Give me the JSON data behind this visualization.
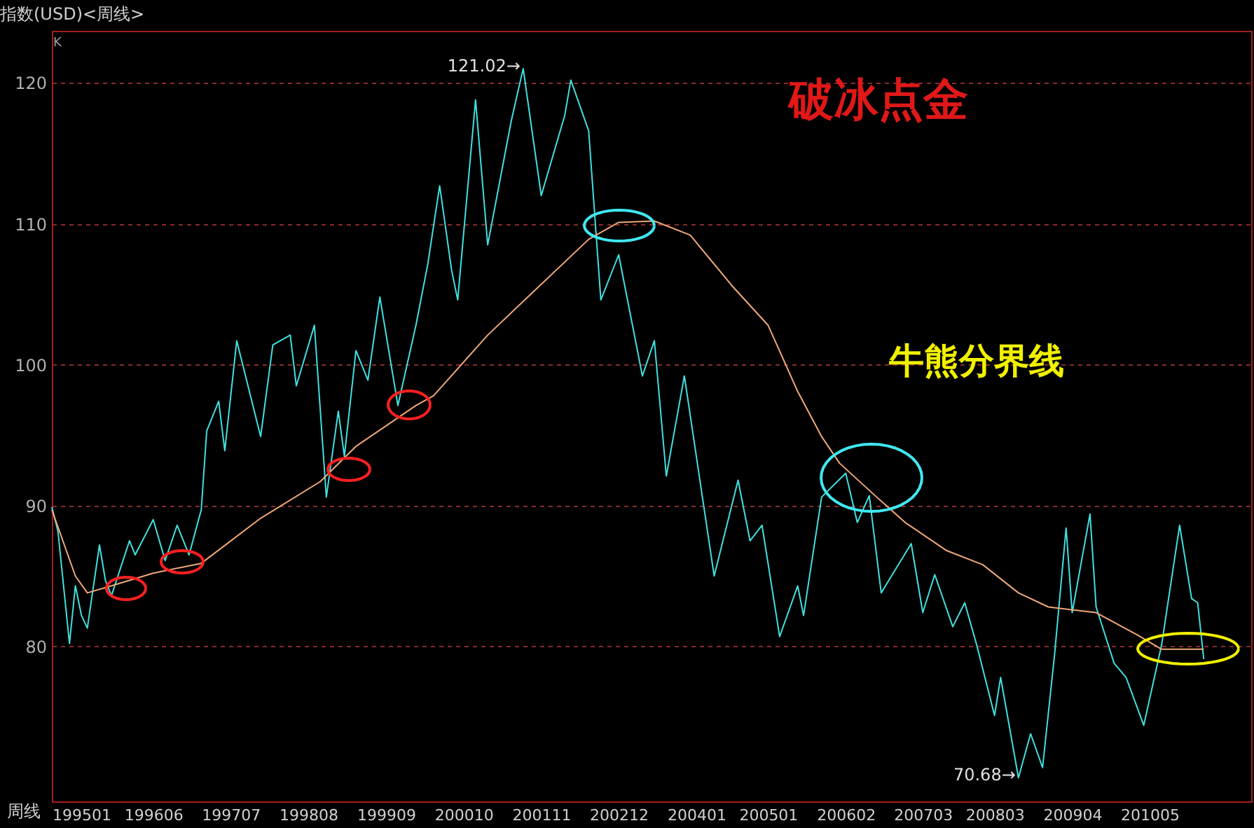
{
  "chart_data": {
    "type": "line",
    "title": "指数(USD)<周线>",
    "annotations": [
      "破冰点金",
      "牛熊分界线",
      "K",
      "周线",
      {
        "text": "121.02→",
        "x": "2001-08",
        "y": 121.02
      },
      {
        "text": "70.68→",
        "x": "2008-07",
        "y": 70.68
      }
    ],
    "series": [
      {
        "color": "#40e0e0",
        "x": [
          "1995-01",
          "1995-02",
          "1995-04",
          "1995-05",
          "1995-06",
          "1995-07",
          "1995-09",
          "1995-10",
          "1995-11",
          "1996-02",
          "1996-03",
          "1996-06",
          "1996-08",
          "1996-10",
          "1996-12",
          "1997-02",
          "1997-03",
          "1997-05",
          "1997-06",
          "1997-08",
          "1997-12",
          "1998-02",
          "1998-05",
          "1998-06",
          "1998-09",
          "1998-11",
          "1999-01",
          "1999-02",
          "1999-04",
          "1999-06",
          "1999-08",
          "1999-11",
          "2000-02",
          "2000-04",
          "2000-06",
          "2000-08",
          "2000-09",
          "2000-12",
          "2001-02",
          "2001-06",
          "2001-08",
          "2001-11",
          "2002-03",
          "2002-04",
          "2002-07",
          "2002-09",
          "2002-12",
          "2003-04",
          "2003-06",
          "2003-08",
          "2003-11",
          "2004-04",
          "2004-08",
          "2004-10",
          "2004-12",
          "2005-03",
          "2005-06",
          "2005-07",
          "2005-10",
          "2006-02",
          "2006-04",
          "2006-06",
          "2006-08",
          "2007-01",
          "2007-03",
          "2007-05",
          "2007-08",
          "2007-10",
          "2007-12",
          "2008-03",
          "2008-04",
          "2008-07",
          "2008-09",
          "2008-11",
          "2009-01",
          "2009-03",
          "2009-04",
          "2009-07",
          "2009-08",
          "2009-11",
          "2010-01",
          "2010-04",
          "2010-07",
          "2010-10",
          "2010-12",
          "2011-01",
          "2011-02"
        ],
        "values": [
          89.9,
          88.2,
          80.2,
          84.3,
          82.2,
          81.3,
          87.2,
          84.7,
          83.6,
          87.5,
          86.5,
          89.0,
          86.1,
          88.6,
          86.5,
          89.7,
          95.3,
          97.4,
          93.9,
          101.7,
          94.9,
          101.4,
          102.1,
          98.5,
          102.8,
          90.6,
          96.7,
          93.5,
          101.0,
          98.9,
          104.8,
          97.1,
          102.8,
          107.1,
          112.7,
          106.7,
          104.6,
          118.8,
          108.5,
          117.3,
          121.02,
          112.0,
          117.7,
          120.2,
          116.6,
          104.6,
          107.8,
          99.2,
          101.7,
          92.1,
          99.2,
          85.0,
          91.8,
          87.5,
          88.6,
          80.7,
          84.3,
          82.2,
          90.6,
          92.3,
          88.8,
          90.7,
          83.8,
          87.3,
          82.4,
          85.1,
          81.4,
          83.1,
          80.1,
          75.1,
          77.8,
          70.68,
          73.8,
          71.4,
          79.4,
          88.4,
          82.4,
          89.4,
          82.8,
          78.8,
          77.8,
          74.4,
          80.1,
          88.6,
          83.4,
          83.1,
          79.1
        ]
      },
      {
        "color": "#f0a878",
        "x": [
          "1995-01",
          "1995-05",
          "1995-07",
          "1995-11",
          "1996-06",
          "1997-02",
          "1997-12",
          "1998-10",
          "1999-04",
          "2000-02",
          "2000-05",
          "2001-02",
          "2001-09",
          "2002-07",
          "2002-12",
          "2003-06",
          "2003-12",
          "2004-07",
          "2005-01",
          "2005-06",
          "2005-10",
          "2006-01",
          "2006-07",
          "2006-12",
          "2007-07",
          "2008-01",
          "2008-07",
          "2008-12",
          "2009-08",
          "2010-03",
          "2010-07",
          "2011-02"
        ],
        "values": [
          89.7,
          85.0,
          83.8,
          84.3,
          85.2,
          85.9,
          89.1,
          91.7,
          94.2,
          97.1,
          97.8,
          102.1,
          104.9,
          108.9,
          110.1,
          110.2,
          109.2,
          105.6,
          102.8,
          98.1,
          94.9,
          93.0,
          90.7,
          88.8,
          86.8,
          85.8,
          83.8,
          82.8,
          82.4,
          80.8,
          79.8,
          79.8
        ]
      }
    ],
    "xlim": [
      "1995-01",
      "2011-10"
    ],
    "xticks": [
      {
        "value": "1995-01",
        "label": "199501"
      },
      {
        "value": "1996-06",
        "label": "199606"
      },
      {
        "value": "1997-07",
        "label": "199707"
      },
      {
        "value": "1998-08",
        "label": "199808"
      },
      {
        "value": "1999-09",
        "label": "199909"
      },
      {
        "value": "2000-10",
        "label": "200010"
      },
      {
        "value": "2001-11",
        "label": "200111"
      },
      {
        "value": "2002-12",
        "label": "200212"
      },
      {
        "value": "2004-01",
        "label": "200401"
      },
      {
        "value": "2005-01",
        "label": "200501"
      },
      {
        "value": "2006-02",
        "label": "200602"
      },
      {
        "value": "2007-03",
        "label": "200703"
      },
      {
        "value": "2008-03",
        "label": "200803"
      },
      {
        "value": "2009-04",
        "label": "200904"
      },
      {
        "value": "2010-05",
        "label": "201005"
      }
    ],
    "ylim": [
      69.0,
      123.7
    ],
    "yticks": [
      80,
      90,
      100,
      110,
      120
    ],
    "grid": "y",
    "legend": false,
    "marker": "none",
    "line_style": "solid"
  }
}
